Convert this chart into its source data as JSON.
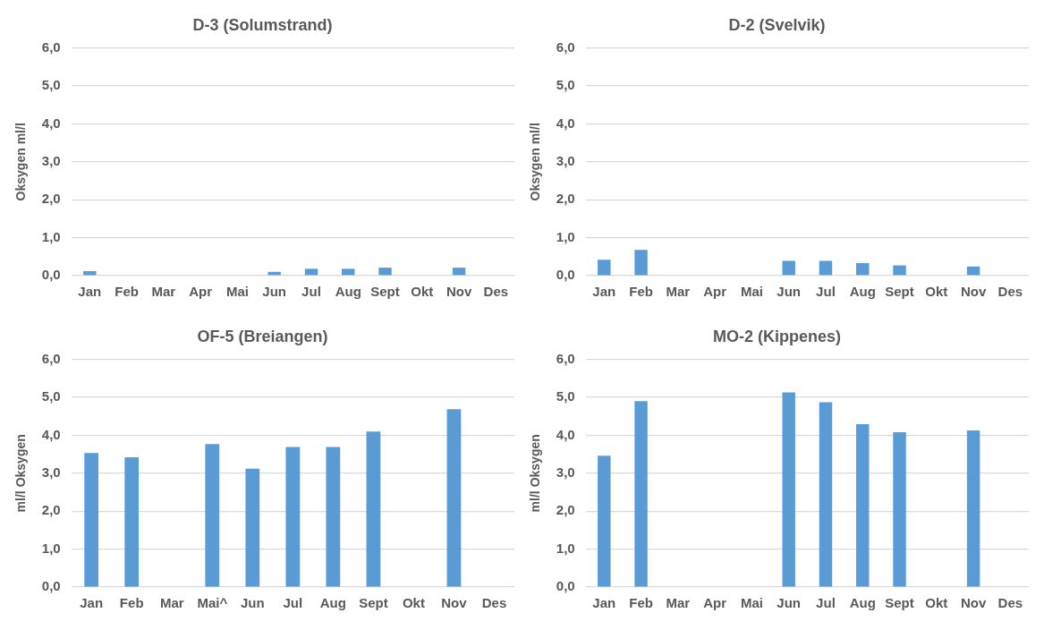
{
  "chart_data": [
    {
      "type": "bar",
      "title": "D-3 (Solumstrand)",
      "ylabel": "Oksygen ml/l",
      "categories": [
        "Jan",
        "Feb",
        "Mar",
        "Apr",
        "Mai",
        "Jun",
        "Jul",
        "Aug",
        "Sept",
        "Okt",
        "Nov",
        "Des"
      ],
      "values": [
        0.12,
        null,
        null,
        null,
        null,
        0.1,
        0.18,
        0.18,
        0.21,
        null,
        0.21,
        null
      ],
      "color": "#5b9bd5",
      "ylim": [
        0,
        6
      ],
      "yticks": [
        {
          "value": 0,
          "label": "0,0"
        },
        {
          "value": 1,
          "label": "1,0"
        },
        {
          "value": 2,
          "label": "2,0"
        },
        {
          "value": 3,
          "label": "3,0"
        },
        {
          "value": 4,
          "label": "4,0"
        },
        {
          "value": 5,
          "label": "5,0"
        },
        {
          "value": 6,
          "label": "6,0"
        }
      ],
      "grid": "y",
      "legend": false
    },
    {
      "type": "bar",
      "title": "D-2 (Svelvik)",
      "ylabel": "Oksygen ml/l",
      "categories": [
        "Jan",
        "Feb",
        "Mar",
        "Apr",
        "Mai",
        "Jun",
        "Jul",
        "Aug",
        "Sept",
        "Okt",
        "Nov",
        "Des"
      ],
      "values": [
        0.42,
        0.68,
        null,
        null,
        null,
        0.39,
        0.39,
        0.33,
        0.27,
        null,
        0.24,
        null
      ],
      "color": "#5b9bd5",
      "ylim": [
        0,
        6
      ],
      "yticks": [
        {
          "value": 0,
          "label": "0,0"
        },
        {
          "value": 1,
          "label": "1,0"
        },
        {
          "value": 2,
          "label": "2,0"
        },
        {
          "value": 3,
          "label": "3,0"
        },
        {
          "value": 4,
          "label": "4,0"
        },
        {
          "value": 5,
          "label": "5,0"
        },
        {
          "value": 6,
          "label": "6,0"
        }
      ],
      "grid": "y",
      "legend": false
    },
    {
      "type": "bar",
      "title": "OF-5 (Breiangen)",
      "ylabel": "ml/l Oksygen",
      "categories": [
        "Jan",
        "Feb",
        "Mar",
        "Mai^",
        "Jun",
        "Jul",
        "Aug",
        "Sept",
        "Okt",
        "Nov",
        "Des"
      ],
      "values": [
        3.53,
        3.42,
        null,
        3.77,
        3.12,
        3.69,
        3.69,
        4.1,
        null,
        4.69,
        null
      ],
      "color": "#5b9bd5",
      "ylim": [
        0,
        6
      ],
      "yticks": [
        {
          "value": 0,
          "label": "0,0"
        },
        {
          "value": 1,
          "label": "1,0"
        },
        {
          "value": 2,
          "label": "2,0"
        },
        {
          "value": 3,
          "label": "3,0"
        },
        {
          "value": 4,
          "label": "4,0"
        },
        {
          "value": 5,
          "label": "5,0"
        },
        {
          "value": 6,
          "label": "6,0"
        }
      ],
      "grid": "y",
      "legend": false
    },
    {
      "type": "bar",
      "title": "MO-2 (Kippenes)",
      "ylabel": "ml/l Oksygen",
      "categories": [
        "Jan",
        "Feb",
        "Mar",
        "Apr",
        "Mai",
        "Jun",
        "Jul",
        "Aug",
        "Sept",
        "Okt",
        "Nov",
        "Des"
      ],
      "values": [
        3.46,
        4.9,
        null,
        null,
        null,
        5.13,
        4.87,
        4.29,
        4.08,
        null,
        4.13,
        null
      ],
      "color": "#5b9bd5",
      "ylim": [
        0,
        6
      ],
      "yticks": [
        {
          "value": 0,
          "label": "0,0"
        },
        {
          "value": 1,
          "label": "1,0"
        },
        {
          "value": 2,
          "label": "2,0"
        },
        {
          "value": 3,
          "label": "3,0"
        },
        {
          "value": 4,
          "label": "4,0"
        },
        {
          "value": 5,
          "label": "5,0"
        },
        {
          "value": 6,
          "label": "6,0"
        }
      ],
      "grid": "y",
      "legend": false
    }
  ]
}
